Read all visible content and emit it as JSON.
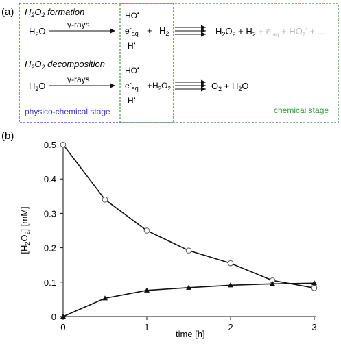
{
  "panel_a": {
    "label": "(a)",
    "formation_title_parts": [
      "H",
      "2",
      "O",
      "2",
      " formation"
    ],
    "decomposition_title_parts": [
      "H",
      "2",
      "O",
      "2",
      " decomposition"
    ],
    "reactant": [
      "H",
      "2",
      "O"
    ],
    "arrow_label": "γ-rays",
    "radicals": [
      "HO",
      "•",
      "e",
      "-",
      "aq",
      "H",
      "•"
    ],
    "plus": "+",
    "formation_additive": [
      "H",
      "2"
    ],
    "decomposition_additive": [
      "H",
      "2",
      "O",
      "2"
    ],
    "formation_products": [
      "H",
      "2",
      "O",
      "2",
      " + H",
      "2",
      " + e",
      "-",
      "aq",
      " + HO",
      "2",
      "•",
      " + ..."
    ],
    "decomposition_products": [
      "O",
      "2",
      " + H",
      "2",
      "O"
    ],
    "physico_stage_label": "physico-chemical stage",
    "chemical_stage_label": "chemical stage",
    "colors": {
      "physico_box": "#3a3ad6",
      "chemical_box": "#3a9a3a",
      "faded_products": "#b8b8b8"
    }
  },
  "panel_b": {
    "label": "(b)",
    "xlabel": "time [h]",
    "ylabel_parts": [
      "[H",
      "2",
      "O",
      "2",
      "] [mM]"
    ]
  },
  "chart_data": {
    "type": "line",
    "xlim": [
      0,
      3
    ],
    "ylim": [
      0,
      0.5
    ],
    "x_ticks": [
      0,
      1,
      2,
      3
    ],
    "y_ticks": [
      0,
      0.1,
      0.2,
      0.3,
      0.4,
      0.5
    ],
    "x_tick_labels": [
      "0",
      "1",
      "2",
      "3"
    ],
    "y_tick_labels": [
      "0",
      "0.1",
      "0.2",
      "0.3",
      "0.4",
      "0.5"
    ],
    "grid": false,
    "xlabel": "time [h]",
    "ylabel": "[H2O2] [mM]",
    "series": [
      {
        "marker": "open-circle",
        "x": [
          0,
          0.5,
          1,
          1.5,
          2,
          2.5,
          3
        ],
        "y": [
          0.5,
          0.34,
          0.25,
          0.192,
          0.155,
          0.105,
          0.083
        ]
      },
      {
        "marker": "filled-triangle",
        "x": [
          0,
          0.5,
          1,
          1.5,
          2,
          2.5,
          3
        ],
        "y": [
          0,
          0.053,
          0.076,
          0.084,
          0.091,
          0.095,
          0.097
        ]
      }
    ]
  }
}
